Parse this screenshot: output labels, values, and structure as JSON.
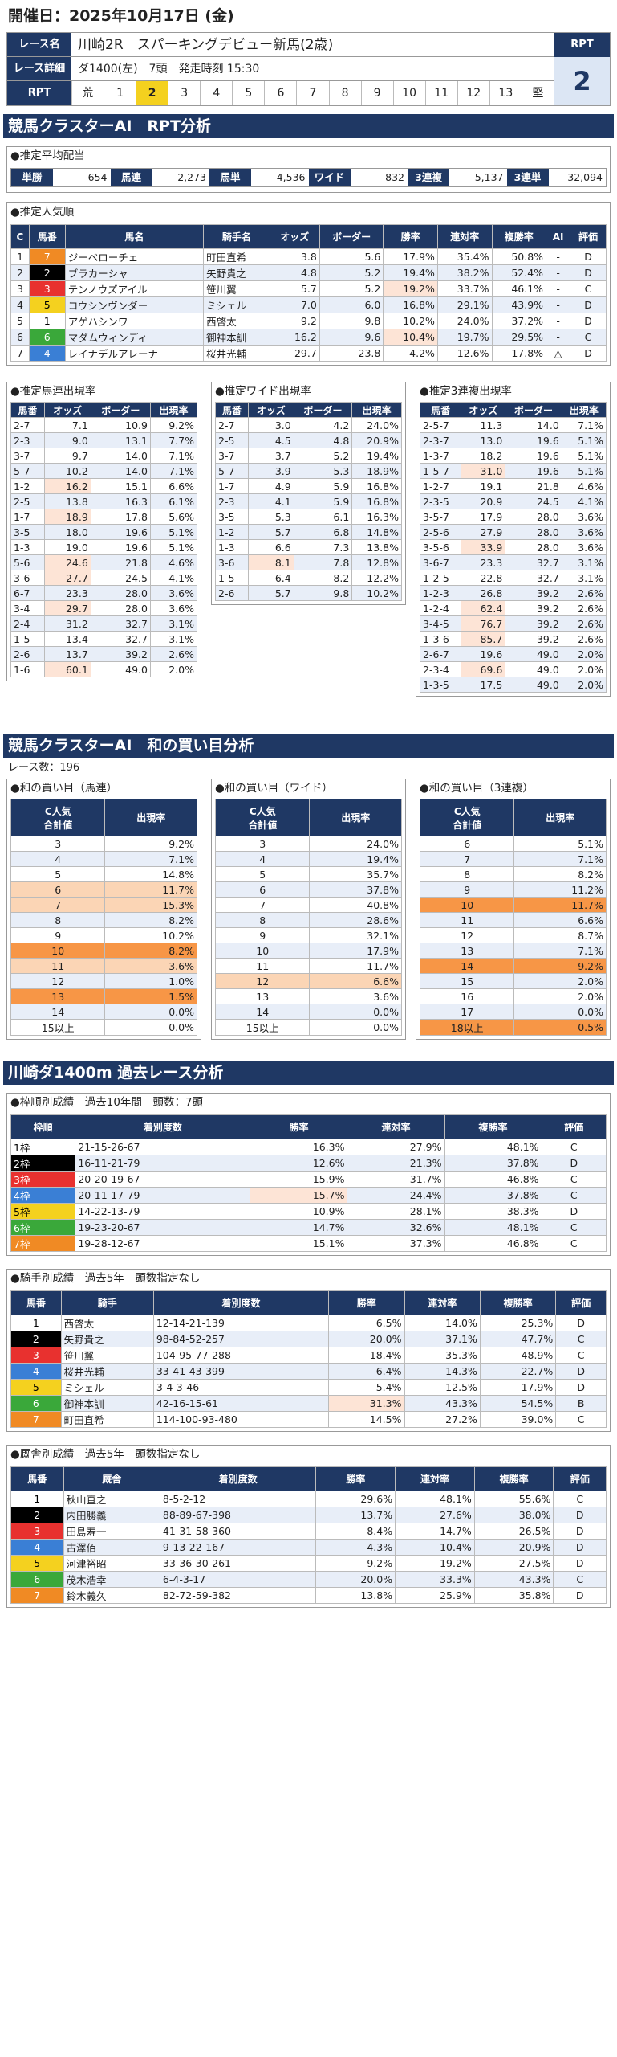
{
  "header": {
    "date": "開催日：2025年10月17日 (金)",
    "race_name_label": "レース名",
    "race_name": "川崎2R　スパーキングデビュー新馬(2歳)",
    "race_detail_label": "レース詳細",
    "race_detail": "ダ1400(左)　7頭　発走時刻 15:30",
    "rpt_label": "RPT",
    "rpt_value": "2",
    "scale": [
      "荒",
      "1",
      "2",
      "3",
      "4",
      "5",
      "6",
      "7",
      "8",
      "9",
      "10",
      "11",
      "12",
      "13",
      "堅"
    ]
  },
  "s1": {
    "title": "競馬クラスターAI　RPT分析",
    "payout": {
      "title": "●推定平均配当",
      "items": [
        {
          "k": "単勝",
          "v": "654"
        },
        {
          "k": "馬連",
          "v": "2,273"
        },
        {
          "k": "馬単",
          "v": "4,536"
        },
        {
          "k": "ワイド",
          "v": "832"
        },
        {
          "k": "3連複",
          "v": "5,137"
        },
        {
          "k": "3連単",
          "v": "32,094"
        }
      ]
    },
    "popularity": {
      "title": "●推定人気順",
      "headers": [
        "C",
        "馬番",
        "馬名",
        "騎手名",
        "オッズ",
        "ボーダー",
        "勝率",
        "連対率",
        "複勝率",
        "AI",
        "評価"
      ],
      "rows": [
        [
          "1",
          "7",
          "ジーベローチェ",
          "町田直希",
          "3.8",
          "5.6",
          "17.9%",
          "35.4%",
          "50.8%",
          "-",
          "D"
        ],
        [
          "2",
          "2",
          "ブラカーシャ",
          "矢野貴之",
          "4.8",
          "5.2",
          "19.4%",
          "38.2%",
          "52.4%",
          "-",
          "D"
        ],
        [
          "3",
          "3",
          "テンノウズアイル",
          "笹川翼",
          "5.7",
          "5.2",
          "19.2%",
          "33.7%",
          "46.1%",
          "-",
          "C"
        ],
        [
          "4",
          "5",
          "コウシンヴンダー",
          "ミシェル",
          "7.0",
          "6.0",
          "16.8%",
          "29.1%",
          "43.9%",
          "-",
          "D"
        ],
        [
          "5",
          "1",
          "アゲハシンワ",
          "西啓太",
          "9.2",
          "9.8",
          "10.2%",
          "24.0%",
          "37.2%",
          "-",
          "D"
        ],
        [
          "6",
          "6",
          "マダムウィンディ",
          "御神本訓",
          "16.2",
          "9.6",
          "10.4%",
          "19.7%",
          "29.5%",
          "-",
          "C"
        ],
        [
          "7",
          "4",
          "レイナデルアレーナ",
          "桜井光輔",
          "29.7",
          "23.8",
          "4.2%",
          "12.6%",
          "17.8%",
          "△",
          "D"
        ]
      ]
    },
    "umaren": {
      "title": "●推定馬連出現率",
      "headers": [
        "馬番",
        "オッズ",
        "ボーダー",
        "出現率"
      ],
      "rows": [
        [
          "2-7",
          "7.1",
          "10.9",
          "9.2%"
        ],
        [
          "2-3",
          "9.0",
          "13.1",
          "7.7%"
        ],
        [
          "3-7",
          "9.7",
          "14.0",
          "7.1%"
        ],
        [
          "5-7",
          "10.2",
          "14.0",
          "7.1%"
        ],
        [
          "1-2",
          "16.2",
          "15.1",
          "6.6%"
        ],
        [
          "2-5",
          "13.8",
          "16.3",
          "6.1%"
        ],
        [
          "1-7",
          "18.9",
          "17.8",
          "5.6%"
        ],
        [
          "3-5",
          "18.0",
          "19.6",
          "5.1%"
        ],
        [
          "1-3",
          "19.0",
          "19.6",
          "5.1%"
        ],
        [
          "5-6",
          "24.6",
          "21.8",
          "4.6%"
        ],
        [
          "3-6",
          "27.7",
          "24.5",
          "4.1%"
        ],
        [
          "6-7",
          "23.3",
          "28.0",
          "3.6%"
        ],
        [
          "3-4",
          "29.7",
          "28.0",
          "3.6%"
        ],
        [
          "2-4",
          "31.2",
          "32.7",
          "3.1%"
        ],
        [
          "1-5",
          "13.4",
          "32.7",
          "3.1%"
        ],
        [
          "2-6",
          "13.7",
          "39.2",
          "2.6%"
        ],
        [
          "1-6",
          "60.1",
          "49.0",
          "2.0%"
        ]
      ]
    },
    "wide": {
      "title": "●推定ワイド出現率",
      "headers": [
        "馬番",
        "オッズ",
        "ボーダー",
        "出現率"
      ],
      "rows": [
        [
          "2-7",
          "3.0",
          "4.2",
          "24.0%"
        ],
        [
          "2-5",
          "4.5",
          "4.8",
          "20.9%"
        ],
        [
          "3-7",
          "3.7",
          "5.2",
          "19.4%"
        ],
        [
          "5-7",
          "3.9",
          "5.3",
          "18.9%"
        ],
        [
          "1-7",
          "4.9",
          "5.9",
          "16.8%"
        ],
        [
          "2-3",
          "4.1",
          "5.9",
          "16.8%"
        ],
        [
          "3-5",
          "5.3",
          "6.1",
          "16.3%"
        ],
        [
          "1-2",
          "5.7",
          "6.8",
          "14.8%"
        ],
        [
          "1-3",
          "6.6",
          "7.3",
          "13.8%"
        ],
        [
          "3-6",
          "8.1",
          "7.8",
          "12.8%"
        ],
        [
          "1-5",
          "6.4",
          "8.2",
          "12.2%"
        ],
        [
          "2-6",
          "5.7",
          "9.8",
          "10.2%"
        ]
      ]
    },
    "trio": {
      "title": "●推定3連複出現率",
      "headers": [
        "馬番",
        "オッズ",
        "ボーダー",
        "出現率"
      ],
      "rows": [
        [
          "2-5-7",
          "11.3",
          "14.0",
          "7.1%"
        ],
        [
          "2-3-7",
          "13.0",
          "19.6",
          "5.1%"
        ],
        [
          "1-3-7",
          "18.2",
          "19.6",
          "5.1%"
        ],
        [
          "1-5-7",
          "31.0",
          "19.6",
          "5.1%"
        ],
        [
          "1-2-7",
          "19.1",
          "21.8",
          "4.6%"
        ],
        [
          "2-3-5",
          "20.9",
          "24.5",
          "4.1%"
        ],
        [
          "3-5-7",
          "17.9",
          "28.0",
          "3.6%"
        ],
        [
          "2-5-6",
          "27.9",
          "28.0",
          "3.6%"
        ],
        [
          "3-5-6",
          "33.9",
          "28.0",
          "3.6%"
        ],
        [
          "3-6-7",
          "23.3",
          "32.7",
          "3.1%"
        ],
        [
          "1-2-5",
          "22.8",
          "32.7",
          "3.1%"
        ],
        [
          "1-2-3",
          "26.8",
          "39.2",
          "2.6%"
        ],
        [
          "1-2-4",
          "62.4",
          "39.2",
          "2.6%"
        ],
        [
          "3-4-5",
          "76.7",
          "39.2",
          "2.6%"
        ],
        [
          "1-3-6",
          "85.7",
          "39.2",
          "2.6%"
        ],
        [
          "2-6-7",
          "19.6",
          "49.0",
          "2.0%"
        ],
        [
          "2-3-4",
          "69.6",
          "49.0",
          "2.0%"
        ],
        [
          "1-3-5",
          "17.5",
          "49.0",
          "2.0%"
        ]
      ]
    }
  },
  "s2": {
    "title": "競馬クラスターAI　和の買い目分析",
    "count": "レース数：196",
    "cols": [
      {
        "title": "●和の買い目（馬連）",
        "h1": "C人気",
        "h2": "合計値",
        "h3": "出現率",
        "rows": [
          [
            "3",
            "9.2%"
          ],
          [
            "4",
            "7.1%"
          ],
          [
            "5",
            "14.8%"
          ],
          [
            "6",
            "11.7%"
          ],
          [
            "7",
            "15.3%"
          ],
          [
            "8",
            "8.2%"
          ],
          [
            "9",
            "10.2%"
          ],
          [
            "10",
            "8.2%"
          ],
          [
            "11",
            "3.6%"
          ],
          [
            "12",
            "1.0%"
          ],
          [
            "13",
            "1.5%"
          ],
          [
            "14",
            "0.0%"
          ],
          [
            "15以上",
            "0.0%"
          ]
        ]
      },
      {
        "title": "●和の買い目（ワイド）",
        "h1": "C人気",
        "h2": "合計値",
        "h3": "出現率",
        "rows": [
          [
            "3",
            "24.0%"
          ],
          [
            "4",
            "19.4%"
          ],
          [
            "5",
            "35.7%"
          ],
          [
            "6",
            "37.8%"
          ],
          [
            "7",
            "40.8%"
          ],
          [
            "8",
            "28.6%"
          ],
          [
            "9",
            "32.1%"
          ],
          [
            "10",
            "17.9%"
          ],
          [
            "11",
            "11.7%"
          ],
          [
            "12",
            "6.6%"
          ],
          [
            "13",
            "3.6%"
          ],
          [
            "14",
            "0.0%"
          ],
          [
            "15以上",
            "0.0%"
          ]
        ]
      },
      {
        "title": "●和の買い目（3連複）",
        "h1": "C人気",
        "h2": "合計値",
        "h3": "出現率",
        "rows": [
          [
            "6",
            "5.1%"
          ],
          [
            "7",
            "7.1%"
          ],
          [
            "8",
            "8.2%"
          ],
          [
            "9",
            "11.2%"
          ],
          [
            "10",
            "11.7%"
          ],
          [
            "11",
            "6.6%"
          ],
          [
            "12",
            "8.7%"
          ],
          [
            "13",
            "7.1%"
          ],
          [
            "14",
            "9.2%"
          ],
          [
            "15",
            "2.0%"
          ],
          [
            "16",
            "2.0%"
          ],
          [
            "17",
            "0.0%"
          ],
          [
            "18以上",
            "0.5%"
          ]
        ]
      }
    ]
  },
  "s3": {
    "title": "川崎ダ1400m 過去レース分析",
    "waku": {
      "title": "●枠順別成績　過去10年間　頭数：7頭",
      "headers": [
        "枠順",
        "着別度数",
        "勝率",
        "連対率",
        "複勝率",
        "評価"
      ],
      "rows": [
        [
          "1枠",
          "21-15-26-67",
          "16.3%",
          "27.9%",
          "48.1%",
          "C"
        ],
        [
          "2枠",
          "16-11-21-79",
          "12.6%",
          "21.3%",
          "37.8%",
          "D"
        ],
        [
          "3枠",
          "20-20-19-67",
          "15.9%",
          "31.7%",
          "46.8%",
          "C"
        ],
        [
          "4枠",
          "20-11-17-79",
          "15.7%",
          "24.4%",
          "37.8%",
          "C"
        ],
        [
          "5枠",
          "14-22-13-79",
          "10.9%",
          "28.1%",
          "38.3%",
          "D"
        ],
        [
          "6枠",
          "19-23-20-67",
          "14.7%",
          "32.6%",
          "48.1%",
          "C"
        ],
        [
          "7枠",
          "19-28-12-67",
          "15.1%",
          "37.3%",
          "46.8%",
          "C"
        ]
      ]
    },
    "jockey": {
      "title": "●騎手別成績　過去5年　頭数指定なし",
      "headers": [
        "馬番",
        "騎手",
        "着別度数",
        "勝率",
        "連対率",
        "複勝率",
        "評価"
      ],
      "rows": [
        [
          "1",
          "西啓太",
          "12-14-21-139",
          "6.5%",
          "14.0%",
          "25.3%",
          "D"
        ],
        [
          "2",
          "矢野貴之",
          "98-84-52-257",
          "20.0%",
          "37.1%",
          "47.7%",
          "C"
        ],
        [
          "3",
          "笹川翼",
          "104-95-77-288",
          "18.4%",
          "35.3%",
          "48.9%",
          "C"
        ],
        [
          "4",
          "桜井光輔",
          "33-41-43-399",
          "6.4%",
          "14.3%",
          "22.7%",
          "D"
        ],
        [
          "5",
          "ミシェル",
          "3-4-3-46",
          "5.4%",
          "12.5%",
          "17.9%",
          "D"
        ],
        [
          "6",
          "御神本訓",
          "42-16-15-61",
          "31.3%",
          "43.3%",
          "54.5%",
          "B"
        ],
        [
          "7",
          "町田直希",
          "114-100-93-480",
          "14.5%",
          "27.2%",
          "39.0%",
          "C"
        ]
      ]
    },
    "trainer": {
      "title": "●厩舎別成績　過去5年　頭数指定なし",
      "headers": [
        "馬番",
        "厩舎",
        "着別度数",
        "勝率",
        "連対率",
        "複勝率",
        "評価"
      ],
      "rows": [
        [
          "1",
          "秋山直之",
          "8-5-2-12",
          "29.6%",
          "48.1%",
          "55.6%",
          "C"
        ],
        [
          "2",
          "内田勝義",
          "88-89-67-398",
          "13.7%",
          "27.6%",
          "38.0%",
          "D"
        ],
        [
          "3",
          "田島寿一",
          "41-31-58-360",
          "8.4%",
          "14.7%",
          "26.5%",
          "D"
        ],
        [
          "4",
          "古澤佰",
          "9-13-22-167",
          "4.3%",
          "10.4%",
          "20.9%",
          "D"
        ],
        [
          "5",
          "河津裕昭",
          "33-36-30-261",
          "9.2%",
          "19.2%",
          "27.5%",
          "D"
        ],
        [
          "6",
          "茂木浩幸",
          "6-4-3-17",
          "20.0%",
          "33.3%",
          "43.3%",
          "C"
        ],
        [
          "7",
          "鈴木義久",
          "82-72-59-382",
          "13.8%",
          "25.9%",
          "35.8%",
          "D"
        ]
      ]
    }
  },
  "colors": {
    "w1": "#ffffff",
    "w2": "#000000",
    "w3": "#e8312f",
    "w4": "#3a7fd5",
    "w5": "#f4d11f",
    "w6": "#3aa83a",
    "w7": "#f08a24",
    "navy": "#1f3864"
  }
}
